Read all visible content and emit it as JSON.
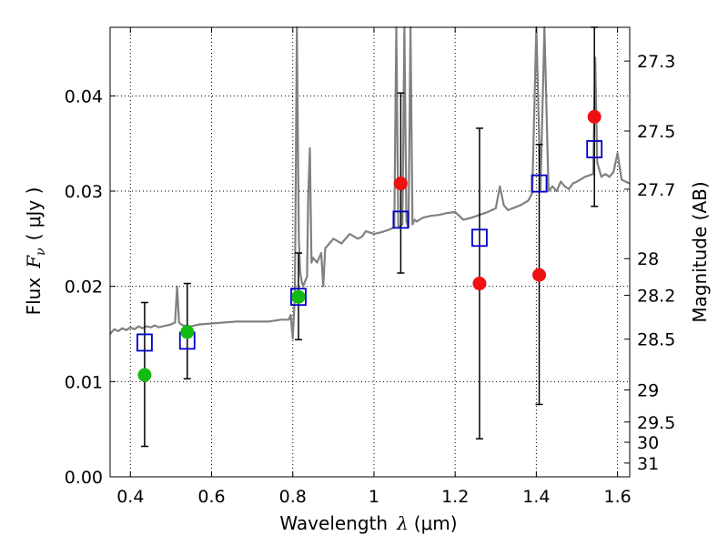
{
  "chart_data": {
    "type": "scatter",
    "xlabel_text": "Wavelength",
    "xlabel_symbol": "λ",
    "xlabel_unit": "(μm)",
    "ylabel_text": "Flux",
    "ylabel_symbol": "F",
    "ylabel_subscript": "ν",
    "ylabel_unit": "( μJy )",
    "y2label": "Magnitude (AB)",
    "xlim": [
      0.35,
      1.63
    ],
    "ylim": [
      0.0,
      0.0472
    ],
    "grid": true,
    "x_ticks": [
      0.4,
      0.6,
      0.8,
      1.0,
      1.2,
      1.4,
      1.6
    ],
    "x_tick_labels": [
      "0.4",
      "0.6",
      "0.8",
      "1",
      "1.2",
      "1.4",
      "1.6"
    ],
    "y_ticks": [
      0.0,
      0.01,
      0.02,
      0.03,
      0.04
    ],
    "y_tick_labels": [
      "0.00",
      "0.01",
      "0.02",
      "0.03",
      "0.04"
    ],
    "mag_ticks": [
      27.3,
      27.5,
      27.7,
      28,
      28.2,
      28.5,
      29,
      29.5,
      30,
      31
    ],
    "mag_tick_labels": [
      "27.3",
      "27.5",
      "27.7",
      "28",
      "28.2",
      "28.5",
      "29",
      "29.5",
      "30",
      "31"
    ],
    "colors": {
      "spectrum": "#808080",
      "model": "#0000cc",
      "observed_red": "#ee1111",
      "observed_green": "#11bb11",
      "errorbar": "#000000",
      "grid": "#000000"
    },
    "series": [
      {
        "points": [
          {
            "x": 0.435,
            "y": 0.0107,
            "yerr_low": 0.0032,
            "yerr_high": 0.0183
          },
          {
            "x": 0.54,
            "y": 0.0152,
            "yerr_low": 0.0103,
            "yerr_high": 0.0203
          },
          {
            "x": 0.814,
            "y": 0.0189,
            "yerr_low": 0.0144,
            "yerr_high": 0.0235
          }
        ]
      },
      {
        "points": [
          {
            "x": 1.066,
            "y": 0.0308,
            "yerr_low": 0.0214,
            "yerr_high": 0.0403
          },
          {
            "x": 1.26,
            "y": 0.0203,
            "yerr_low": 0.004,
            "yerr_high": 0.0366
          },
          {
            "x": 1.407,
            "y": 0.0212,
            "yerr_low": 0.0076,
            "yerr_high": 0.0349
          },
          {
            "x": 1.543,
            "y": 0.0378,
            "yerr_low": 0.0284,
            "yerr_high": 0.0472
          }
        ]
      },
      {
        "points": [
          {
            "x": 0.435,
            "y": 0.0141
          },
          {
            "x": 0.54,
            "y": 0.0143
          },
          {
            "x": 0.814,
            "y": 0.0189
          },
          {
            "x": 1.066,
            "y": 0.027
          },
          {
            "x": 1.26,
            "y": 0.0251
          },
          {
            "x": 1.407,
            "y": 0.0308
          },
          {
            "x": 1.543,
            "y": 0.0344
          }
        ]
      },
      {
        "x": [
          0.35,
          0.36,
          0.37,
          0.38,
          0.39,
          0.4,
          0.41,
          0.42,
          0.43,
          0.44,
          0.45,
          0.46,
          0.47,
          0.48,
          0.49,
          0.5,
          0.51,
          0.515,
          0.52,
          0.525,
          0.53,
          0.55,
          0.57,
          0.6,
          0.63,
          0.66,
          0.7,
          0.74,
          0.77,
          0.79,
          0.795,
          0.8,
          0.805,
          0.808,
          0.81,
          0.812,
          0.815,
          0.818,
          0.822,
          0.826,
          0.83,
          0.835,
          0.838,
          0.842,
          0.846,
          0.85,
          0.86,
          0.87,
          0.875,
          0.88,
          0.89,
          0.9,
          0.92,
          0.94,
          0.96,
          0.97,
          0.98,
          1.0,
          1.02,
          1.04,
          1.05,
          1.055,
          1.06,
          1.07,
          1.075,
          1.08,
          1.085,
          1.09,
          1.095,
          1.1,
          1.105,
          1.12,
          1.14,
          1.16,
          1.18,
          1.2,
          1.22,
          1.24,
          1.26,
          1.28,
          1.3,
          1.31,
          1.32,
          1.33,
          1.36,
          1.38,
          1.39,
          1.4,
          1.41,
          1.42,
          1.43,
          1.44,
          1.45,
          1.46,
          1.47,
          1.48,
          1.49,
          1.5,
          1.52,
          1.54,
          1.545,
          1.55,
          1.56,
          1.57,
          1.58,
          1.59,
          1.6,
          1.61,
          1.62,
          1.63
        ],
        "y": [
          0.015,
          0.0155,
          0.0153,
          0.0156,
          0.0154,
          0.0157,
          0.0155,
          0.0158,
          0.0156,
          0.0158,
          0.0157,
          0.0159,
          0.0157,
          0.0158,
          0.0159,
          0.016,
          0.0162,
          0.02,
          0.0162,
          0.016,
          0.0159,
          0.0158,
          0.016,
          0.0161,
          0.0162,
          0.0163,
          0.0163,
          0.0163,
          0.0165,
          0.0165,
          0.017,
          0.0145,
          0.019,
          0.035,
          0.0472,
          0.038,
          0.025,
          0.0215,
          0.0205,
          0.02,
          0.0205,
          0.021,
          0.0295,
          0.0345,
          0.0225,
          0.023,
          0.0225,
          0.0235,
          0.02,
          0.024,
          0.0245,
          0.025,
          0.0245,
          0.0255,
          0.025,
          0.0252,
          0.0258,
          0.0255,
          0.0257,
          0.026,
          0.0262,
          0.0472,
          0.0262,
          0.0265,
          0.0472,
          0.0268,
          0.0262,
          0.0472,
          0.0265,
          0.027,
          0.0268,
          0.0272,
          0.0274,
          0.0275,
          0.0277,
          0.0278,
          0.027,
          0.0272,
          0.0275,
          0.0278,
          0.0282,
          0.0305,
          0.0285,
          0.028,
          0.0285,
          0.029,
          0.0298,
          0.0472,
          0.03,
          0.0472,
          0.03,
          0.0305,
          0.03,
          0.031,
          0.0305,
          0.0302,
          0.0308,
          0.031,
          0.0315,
          0.0318,
          0.044,
          0.033,
          0.0315,
          0.0318,
          0.0315,
          0.032,
          0.034,
          0.0312,
          0.031,
          0.0308
        ]
      }
    ]
  }
}
